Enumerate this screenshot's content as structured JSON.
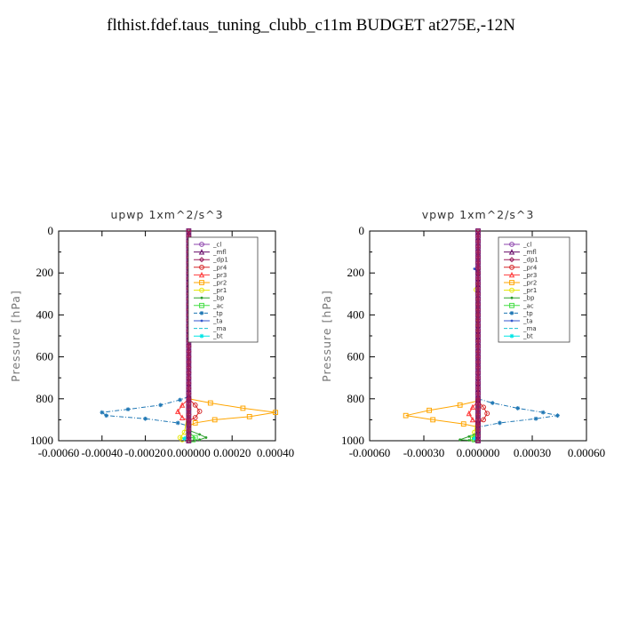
{
  "figure": {
    "title": "flthist.fdef.taus_tuning_clubb_c11m  BUDGET at275E,-12N"
  },
  "legend_series": [
    {
      "name": "_cl",
      "color": "#8e44ad",
      "marker": "circle"
    },
    {
      "name": "_mfl",
      "color": "#6a0d6a",
      "marker": "tri"
    },
    {
      "name": "_dp1",
      "color": "#9b1b5a",
      "marker": "diamond"
    },
    {
      "name": "_pr4",
      "color": "#d62728",
      "marker": "circle"
    },
    {
      "name": "_pr3",
      "color": "#ff3b3b",
      "marker": "tri"
    },
    {
      "name": "_pr2",
      "color": "#ffa500",
      "marker": "square"
    },
    {
      "name": "_pr1",
      "color": "#e6e600",
      "marker": "circle"
    },
    {
      "name": "_bp",
      "color": "#2ca02c",
      "marker": "dot"
    },
    {
      "name": "_ac",
      "color": "#44dd44",
      "marker": "square"
    },
    {
      "name": "_tp",
      "color": "#1f77b4",
      "marker": "star"
    },
    {
      "name": "_ta",
      "color": "#3355cc",
      "marker": "dot"
    },
    {
      "name": "_ma",
      "color": "#17becf",
      "marker": "none"
    },
    {
      "name": "_bt",
      "color": "#00e5e5",
      "marker": "star"
    }
  ],
  "chart_data": [
    {
      "type": "line",
      "title": "upwp   1xm^2/s^3",
      "xlabel": "",
      "ylabel": "Pressure [hPa]",
      "xlim": [
        -0.0006,
        0.0004
      ],
      "ylim": [
        1000,
        0
      ],
      "x_ticks": [
        "-0.00060",
        "-0.00040",
        "-0.00020",
        "0.000000",
        "0.00020",
        "0.00040"
      ],
      "y_ticks": [
        "0",
        "200",
        "400",
        "600",
        "800",
        "1000"
      ],
      "legend_position": "top-right",
      "series": [
        {
          "name": "_tp",
          "points": [
            [
              0.0,
              790
            ],
            [
              -4e-05,
              805
            ],
            [
              -0.00013,
              830
            ],
            [
              -0.00028,
              850
            ],
            [
              -0.0004,
              865
            ],
            [
              -0.00038,
              880
            ],
            [
              -0.0002,
              895
            ],
            [
              -5e-05,
              915
            ],
            [
              0.0,
              930
            ]
          ]
        },
        {
          "name": "_pr2",
          "points": [
            [
              0.0,
              800
            ],
            [
              0.0001,
              820
            ],
            [
              0.00025,
              845
            ],
            [
              0.0004,
              865
            ],
            [
              0.00028,
              885
            ],
            [
              0.00012,
              900
            ],
            [
              3e-05,
              915
            ],
            [
              0.0,
              930
            ]
          ]
        },
        {
          "name": "_pr1",
          "points": [
            [
              0.0,
              170
            ],
            [
              0.0,
              180
            ],
            [
              0.0,
              270
            ],
            [
              0.0,
              840
            ],
            [
              -2e-05,
              960
            ],
            [
              -4e-05,
              985
            ],
            [
              -3e-05,
              995
            ]
          ]
        },
        {
          "name": "_pr4",
          "points": [
            [
              0.0,
              800
            ],
            [
              3e-05,
              830
            ],
            [
              5e-05,
              860
            ],
            [
              3e-05,
              890
            ],
            [
              0.0,
              905
            ]
          ]
        },
        {
          "name": "_pr3",
          "points": [
            [
              0.0,
              800
            ],
            [
              -3e-05,
              830
            ],
            [
              -5e-05,
              860
            ],
            [
              -3e-05,
              890
            ],
            [
              0.0,
              905
            ]
          ]
        },
        {
          "name": "_bp",
          "points": [
            [
              0.0,
              950
            ],
            [
              5e-05,
              970
            ],
            [
              8e-05,
              985
            ],
            [
              5e-05,
              995
            ]
          ]
        },
        {
          "name": "_ac",
          "points": [
            [
              0.0,
              960
            ],
            [
              3e-05,
              985
            ],
            [
              2e-05,
              995
            ]
          ]
        },
        {
          "name": "_bt",
          "points": [
            [
              0.0,
              960
            ],
            [
              -2e-05,
              990
            ]
          ]
        },
        {
          "name": "_mfl",
          "points": [
            [
              0.0,
              0
            ],
            [
              0.0,
              1000
            ]
          ]
        },
        {
          "name": "_dp1",
          "points": [
            [
              0.0,
              0
            ],
            [
              0.0,
              1000
            ]
          ]
        }
      ]
    },
    {
      "type": "line",
      "title": "vpwp   1xm^2/s^3",
      "xlabel": "",
      "ylabel": "Pressure [hPa]",
      "xlim": [
        -0.0006,
        0.0006
      ],
      "ylim": [
        1000,
        0
      ],
      "x_ticks": [
        "-0.00060",
        "-0.00030",
        "0.000000",
        "0.00030",
        "0.00060"
      ],
      "y_ticks": [
        "0",
        "200",
        "400",
        "600",
        "800",
        "1000"
      ],
      "legend_position": "top-right",
      "series": [
        {
          "name": "_tp",
          "points": [
            [
              0.0,
              800
            ],
            [
              8e-05,
              820
            ],
            [
              0.00022,
              845
            ],
            [
              0.00036,
              865
            ],
            [
              0.00044,
              880
            ],
            [
              0.00032,
              895
            ],
            [
              0.00012,
              915
            ],
            [
              0.0,
              935
            ]
          ]
        },
        {
          "name": "_pr2",
          "points": [
            [
              0.0,
              810
            ],
            [
              -0.0001,
              830
            ],
            [
              -0.00027,
              855
            ],
            [
              -0.0004,
              880
            ],
            [
              -0.00025,
              900
            ],
            [
              -8e-05,
              920
            ],
            [
              0.0,
              935
            ]
          ]
        },
        {
          "name": "_pr1",
          "points": [
            [
              0.0,
              180
            ],
            [
              0.0,
              200
            ],
            [
              -1e-05,
              280
            ],
            [
              0.0,
              840
            ],
            [
              -2e-05,
              960
            ],
            [
              -3e-05,
              990
            ]
          ]
        },
        {
          "name": "_pr4",
          "points": [
            [
              0.0,
              810
            ],
            [
              3e-05,
              840
            ],
            [
              5e-05,
              870
            ],
            [
              3e-05,
              900
            ],
            [
              0.0,
              915
            ]
          ]
        },
        {
          "name": "_pr3",
          "points": [
            [
              0.0,
              810
            ],
            [
              -3e-05,
              840
            ],
            [
              -5e-05,
              870
            ],
            [
              -3e-05,
              900
            ],
            [
              0.0,
              915
            ]
          ]
        },
        {
          "name": "_bp",
          "points": [
            [
              0.0,
              960
            ],
            [
              -5e-05,
              980
            ],
            [
              -0.0001,
              995
            ],
            [
              -5e-05,
              998
            ]
          ]
        },
        {
          "name": "_ac",
          "points": [
            [
              0.0,
              960
            ],
            [
              -3e-05,
              985
            ],
            [
              -2e-05,
              995
            ]
          ]
        },
        {
          "name": "_ta",
          "points": [
            [
              0.0,
              170
            ],
            [
              -2e-05,
              180
            ],
            [
              0.0,
              200
            ]
          ]
        },
        {
          "name": "_bt",
          "points": [
            [
              0.0,
              960
            ],
            [
              -2e-05,
              990
            ]
          ]
        },
        {
          "name": "_mfl",
          "points": [
            [
              0.0,
              0
            ],
            [
              0.0,
              1000
            ]
          ]
        },
        {
          "name": "_dp1",
          "points": [
            [
              0.0,
              0
            ],
            [
              0.0,
              1000
            ]
          ]
        }
      ]
    }
  ]
}
